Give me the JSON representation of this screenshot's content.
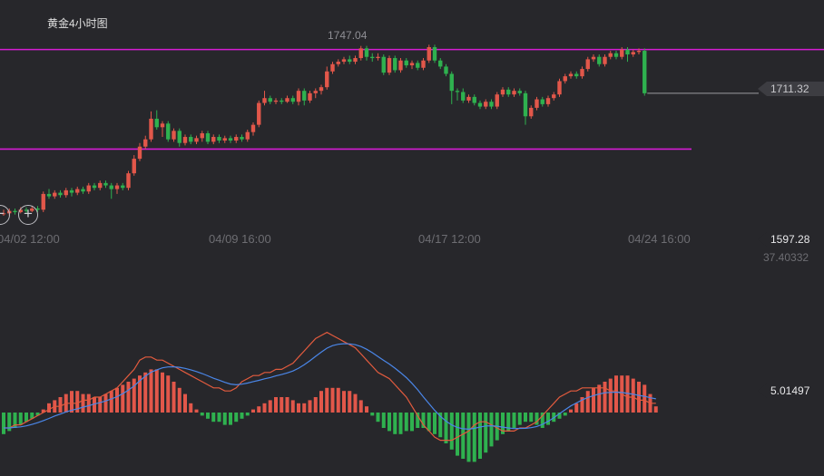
{
  "title": "黄金4小时图",
  "peak_label": "1747.04",
  "colors": {
    "background": "#27272b",
    "up": "#e2574a",
    "down": "#2fb14f",
    "guide_line": "#d61cd4",
    "macd_line": "#e35b3e",
    "signal_line": "#4a86e8"
  },
  "icons": {
    "zoom_out": "minus-icon",
    "zoom_in": "plus-icon"
  },
  "zoom": {
    "out_symbol": "−",
    "in_symbol": "+"
  },
  "price_tags": {
    "current_price": "1711.32",
    "lower_price": "1597.28",
    "indicator_value": "37.40332",
    "macd_value": "5.01497"
  },
  "chart_data": [
    {
      "type": "candlestick",
      "title": "黄金4小时图",
      "x_tick_labels": [
        "04/02 12:00",
        "04/09 16:00",
        "04/17 12:00",
        "04/24 16:00"
      ],
      "guide_lines": [
        1747.04,
        1665
      ],
      "ylim": [
        1597.28,
        1752
      ],
      "candles": [
        [
          1612,
          1612,
          1615,
          1610
        ],
        [
          1612,
          1614,
          1616,
          1610
        ],
        [
          1614,
          1613,
          1616,
          1611
        ],
        [
          1613,
          1615,
          1617,
          1612
        ],
        [
          1615,
          1614,
          1617,
          1612
        ],
        [
          1614,
          1616,
          1618,
          1613
        ],
        [
          1616,
          1615,
          1618,
          1613
        ],
        [
          1615,
          1628,
          1630,
          1613
        ],
        [
          1628,
          1626,
          1632,
          1624
        ],
        [
          1626,
          1629,
          1631,
          1624
        ],
        [
          1629,
          1627,
          1631,
          1625
        ],
        [
          1627,
          1631,
          1633,
          1625
        ],
        [
          1631,
          1629,
          1633,
          1626
        ],
        [
          1629,
          1632,
          1634,
          1627
        ],
        [
          1632,
          1630,
          1634,
          1628
        ],
        [
          1630,
          1635,
          1637,
          1628
        ],
        [
          1635,
          1633,
          1637,
          1631
        ],
        [
          1633,
          1637,
          1639,
          1631
        ],
        [
          1637,
          1635,
          1639,
          1633
        ],
        [
          1635,
          1632,
          1637,
          1624
        ],
        [
          1632,
          1635,
          1637,
          1628
        ],
        [
          1635,
          1633,
          1637,
          1631
        ],
        [
          1633,
          1645,
          1647,
          1631
        ],
        [
          1645,
          1657,
          1660,
          1643
        ],
        [
          1657,
          1667,
          1670,
          1655
        ],
        [
          1667,
          1673,
          1676,
          1665
        ],
        [
          1673,
          1690,
          1696,
          1671
        ],
        [
          1690,
          1683,
          1697,
          1681
        ],
        [
          1683,
          1686,
          1688,
          1675
        ],
        [
          1686,
          1673,
          1688,
          1671
        ],
        [
          1673,
          1680,
          1682,
          1671
        ],
        [
          1680,
          1670,
          1682,
          1667
        ],
        [
          1670,
          1675,
          1677,
          1668
        ],
        [
          1675,
          1671,
          1677,
          1669
        ],
        [
          1671,
          1674,
          1676,
          1669
        ],
        [
          1674,
          1678,
          1680,
          1671
        ],
        [
          1678,
          1671,
          1680,
          1669
        ],
        [
          1671,
          1675,
          1677,
          1669
        ],
        [
          1675,
          1672,
          1677,
          1670
        ],
        [
          1672,
          1674,
          1676,
          1670
        ],
        [
          1674,
          1672,
          1676,
          1670
        ],
        [
          1672,
          1675,
          1677,
          1670
        ],
        [
          1675,
          1673,
          1677,
          1671
        ],
        [
          1673,
          1679,
          1681,
          1671
        ],
        [
          1679,
          1685,
          1687,
          1676
        ],
        [
          1685,
          1703,
          1705,
          1683
        ],
        [
          1703,
          1707,
          1713,
          1701
        ],
        [
          1707,
          1704,
          1709,
          1702
        ],
        [
          1704,
          1705,
          1707,
          1702
        ],
        [
          1705,
          1704,
          1707,
          1702
        ],
        [
          1704,
          1707,
          1709,
          1703
        ],
        [
          1707,
          1704,
          1709,
          1702
        ],
        [
          1704,
          1713,
          1715,
          1701
        ],
        [
          1713,
          1705,
          1715,
          1701
        ],
        [
          1705,
          1711,
          1713,
          1703
        ],
        [
          1711,
          1713,
          1715,
          1707
        ],
        [
          1713,
          1716,
          1718,
          1710
        ],
        [
          1716,
          1729,
          1733,
          1714
        ],
        [
          1729,
          1735,
          1737,
          1727
        ],
        [
          1735,
          1737,
          1739,
          1733
        ],
        [
          1737,
          1739,
          1741,
          1735
        ],
        [
          1739,
          1737,
          1742,
          1735
        ],
        [
          1737,
          1740,
          1742,
          1735
        ],
        [
          1740,
          1748,
          1750,
          1738
        ],
        [
          1748,
          1741,
          1750,
          1738
        ],
        [
          1741,
          1740,
          1744,
          1737
        ],
        [
          1740,
          1741,
          1744,
          1738
        ],
        [
          1741,
          1728,
          1743,
          1726
        ],
        [
          1728,
          1740,
          1742,
          1726
        ],
        [
          1740,
          1730,
          1742,
          1728
        ],
        [
          1730,
          1738,
          1740,
          1728
        ],
        [
          1738,
          1734,
          1740,
          1732
        ],
        [
          1734,
          1736,
          1738,
          1731
        ],
        [
          1736,
          1732,
          1738,
          1730
        ],
        [
          1732,
          1738,
          1740,
          1730
        ],
        [
          1738,
          1749,
          1751,
          1736
        ],
        [
          1749,
          1738,
          1751,
          1736
        ],
        [
          1738,
          1733,
          1740,
          1731
        ],
        [
          1733,
          1727,
          1735,
          1725
        ],
        [
          1727,
          1713,
          1729,
          1702
        ],
        [
          1713,
          1712,
          1715,
          1705
        ],
        [
          1712,
          1705,
          1715,
          1703
        ],
        [
          1705,
          1708,
          1710,
          1703
        ],
        [
          1708,
          1703,
          1710,
          1701
        ],
        [
          1703,
          1700,
          1705,
          1698
        ],
        [
          1700,
          1704,
          1706,
          1698
        ],
        [
          1704,
          1700,
          1706,
          1698
        ],
        [
          1700,
          1710,
          1712,
          1698
        ],
        [
          1710,
          1714,
          1716,
          1708
        ],
        [
          1714,
          1710,
          1716,
          1708
        ],
        [
          1710,
          1713,
          1715,
          1708
        ],
        [
          1713,
          1711,
          1715,
          1709
        ],
        [
          1711,
          1692,
          1713,
          1685
        ],
        [
          1692,
          1699,
          1701,
          1690
        ],
        [
          1699,
          1706,
          1708,
          1697
        ],
        [
          1706,
          1702,
          1708,
          1700
        ],
        [
          1702,
          1707,
          1709,
          1700
        ],
        [
          1707,
          1710,
          1712,
          1705
        ],
        [
          1710,
          1721,
          1723,
          1708
        ],
        [
          1721,
          1725,
          1727,
          1719
        ],
        [
          1725,
          1727,
          1729,
          1723
        ],
        [
          1727,
          1725,
          1729,
          1723
        ],
        [
          1725,
          1731,
          1733,
          1723
        ],
        [
          1731,
          1739,
          1741,
          1729
        ],
        [
          1739,
          1741,
          1743,
          1737
        ],
        [
          1741,
          1735,
          1743,
          1733
        ],
        [
          1735,
          1741,
          1743,
          1733
        ],
        [
          1741,
          1744,
          1746,
          1739
        ],
        [
          1744,
          1741,
          1746,
          1739
        ],
        [
          1741,
          1747,
          1749,
          1739
        ],
        [
          1747,
          1743,
          1749,
          1737
        ],
        [
          1743,
          1745,
          1747,
          1741
        ],
        [
          1745,
          1746,
          1748,
          1743
        ],
        [
          1746,
          1711,
          1748,
          1709
        ]
      ]
    },
    {
      "type": "macd",
      "histogram": [
        -7,
        -6,
        -5,
        -4,
        -3,
        -2,
        -1,
        1,
        3,
        4,
        5,
        6,
        7,
        7,
        6,
        6,
        5,
        5,
        6,
        7,
        8,
        9,
        10,
        11,
        12,
        13,
        14,
        14,
        13,
        12,
        10,
        8,
        6,
        3,
        1,
        -1,
        -2,
        -3,
        -3,
        -4,
        -4,
        -3,
        -2,
        -1,
        1,
        2,
        3,
        4,
        5,
        5,
        5,
        4,
        3,
        3,
        4,
        5,
        7,
        8,
        8,
        8,
        7,
        7,
        6,
        4,
        2,
        -1,
        -3,
        -5,
        -6,
        -7,
        -7,
        -6,
        -6,
        -5,
        -5,
        -6,
        -7,
        -8,
        -10,
        -12,
        -14,
        -15,
        -16,
        -16,
        -15,
        -13,
        -11,
        -9,
        -7,
        -6,
        -5,
        -4,
        -3,
        -3,
        -4,
        -5,
        -4,
        -3,
        -2,
        -1,
        1,
        3,
        5,
        7,
        8,
        9,
        10,
        11,
        12,
        12,
        12,
        11,
        10,
        9,
        6,
        2
      ],
      "macd": [
        -5,
        -5,
        -4,
        -4,
        -3,
        -2,
        -1,
        0,
        1,
        2,
        2,
        3,
        3,
        3,
        4,
        4,
        5,
        5,
        6,
        7,
        8,
        10,
        12,
        14,
        17,
        18,
        18,
        17,
        17,
        16,
        15,
        14,
        13,
        12,
        11,
        10,
        9,
        8,
        8,
        7,
        7,
        8,
        10,
        11,
        12,
        12,
        13,
        13,
        14,
        14,
        15,
        16,
        18,
        20,
        22,
        24,
        25,
        26,
        25,
        24,
        23,
        22,
        21,
        19,
        17,
        15,
        13,
        12,
        11,
        9,
        7,
        5,
        2,
        -1,
        -4,
        -6,
        -8,
        -9,
        -9,
        -9,
        -8,
        -7,
        -6,
        -4,
        -3,
        -3,
        -4,
        -5,
        -6,
        -6,
        -6,
        -5,
        -5,
        -4,
        -3,
        -1,
        1,
        3,
        5,
        6,
        7,
        7,
        8,
        8,
        8,
        8,
        8,
        7,
        7,
        6,
        5,
        5,
        4,
        4,
        3,
        3
      ]
    }
  ]
}
